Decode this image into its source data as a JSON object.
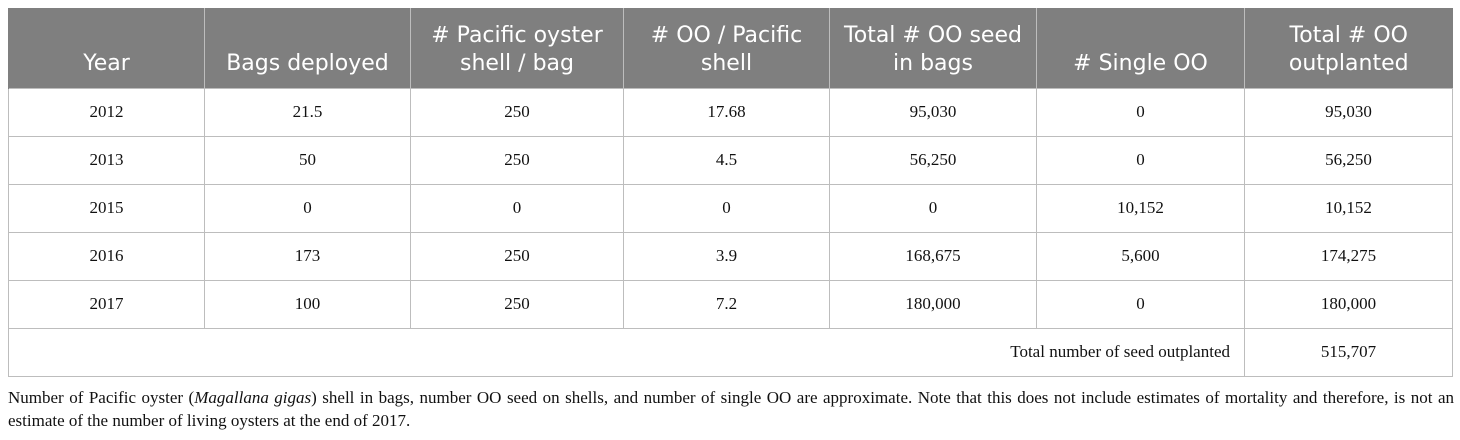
{
  "table": {
    "columns": [
      "Year",
      "Bags deployed",
      "# Pacific oyster shell / bag",
      "# OO / Pacific shell",
      "Total # OO seed in bags",
      "# Single OO",
      "Total # OO outplanted"
    ],
    "rows": [
      [
        "2012",
        "21.5",
        "250",
        "17.68",
        "95,030",
        "0",
        "95,030"
      ],
      [
        "2013",
        "50",
        "250",
        "4.5",
        "56,250",
        "0",
        "56,250"
      ],
      [
        "2015",
        "0",
        "0",
        "0",
        "0",
        "10,152",
        "10,152"
      ],
      [
        "2016",
        "173",
        "250",
        "3.9",
        "168,675",
        "5,600",
        "174,275"
      ],
      [
        "2017",
        "100",
        "250",
        "7.2",
        "180,000",
        "0",
        "180,000"
      ]
    ],
    "total": {
      "label": "Total number of seed outplanted",
      "value": "515,707"
    },
    "note": {
      "before": "Number of Pacific oyster (",
      "italic": "Magallana gigas",
      "after": ") shell in bags, number OO seed on shells, and number of single OO are approximate. Note that this does not include estimates of mortality and therefore, is not an estimate of the number of living oysters at the end of 2017."
    }
  }
}
